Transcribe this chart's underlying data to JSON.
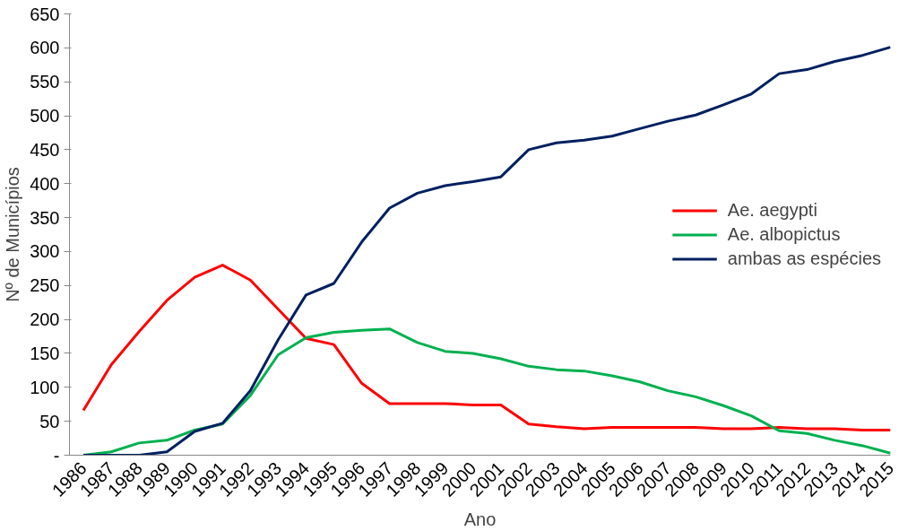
{
  "chart_data": {
    "type": "line",
    "xlabel": "Ano",
    "ylabel": "Nº de Municípios",
    "categories": [
      "1986",
      "1987",
      "1988",
      "1989",
      "1990",
      "1991",
      "1992",
      "1993",
      "1994",
      "1995",
      "1996",
      "1997",
      "1998",
      "1999",
      "2000",
      "2001",
      "2002",
      "2003",
      "2004",
      "2005",
      "2006",
      "2007",
      "2008",
      "2009",
      "2010",
      "2011",
      "2012",
      "2013",
      "2014",
      "2015"
    ],
    "series": [
      {
        "name": "Ae. aegypti",
        "color": "#ff0000",
        "values": [
          66,
          133,
          182,
          228,
          262,
          280,
          258,
          215,
          172,
          163,
          106,
          76,
          76,
          76,
          74,
          74,
          46,
          42,
          39,
          41,
          41,
          41,
          41,
          39,
          39,
          41,
          39,
          39,
          37,
          37
        ]
      },
      {
        "name": "Ae. albopictus",
        "color": "#00b050",
        "values": [
          0,
          5,
          18,
          22,
          37,
          46,
          88,
          148,
          173,
          181,
          184,
          186,
          166,
          153,
          150,
          142,
          131,
          126,
          124,
          117,
          108,
          95,
          86,
          73,
          58,
          36,
          32,
          22,
          14,
          3
        ]
      },
      {
        "name": "ambas as espécies",
        "color": "#002060",
        "values": [
          0,
          0,
          0,
          5,
          35,
          47,
          95,
          170,
          236,
          253,
          314,
          364,
          386,
          397,
          403,
          410,
          450,
          460,
          464,
          470,
          481,
          492,
          501,
          516,
          532,
          562,
          568,
          580,
          589,
          601
        ]
      }
    ],
    "ylim": [
      0,
      650
    ],
    "yticks": [
      {
        "value": 0,
        "label": "-"
      },
      50,
      100,
      150,
      200,
      250,
      300,
      350,
      400,
      450,
      500,
      550,
      600,
      650
    ],
    "grid": false,
    "legend": "right",
    "marker": "none",
    "line_style": "solid"
  }
}
